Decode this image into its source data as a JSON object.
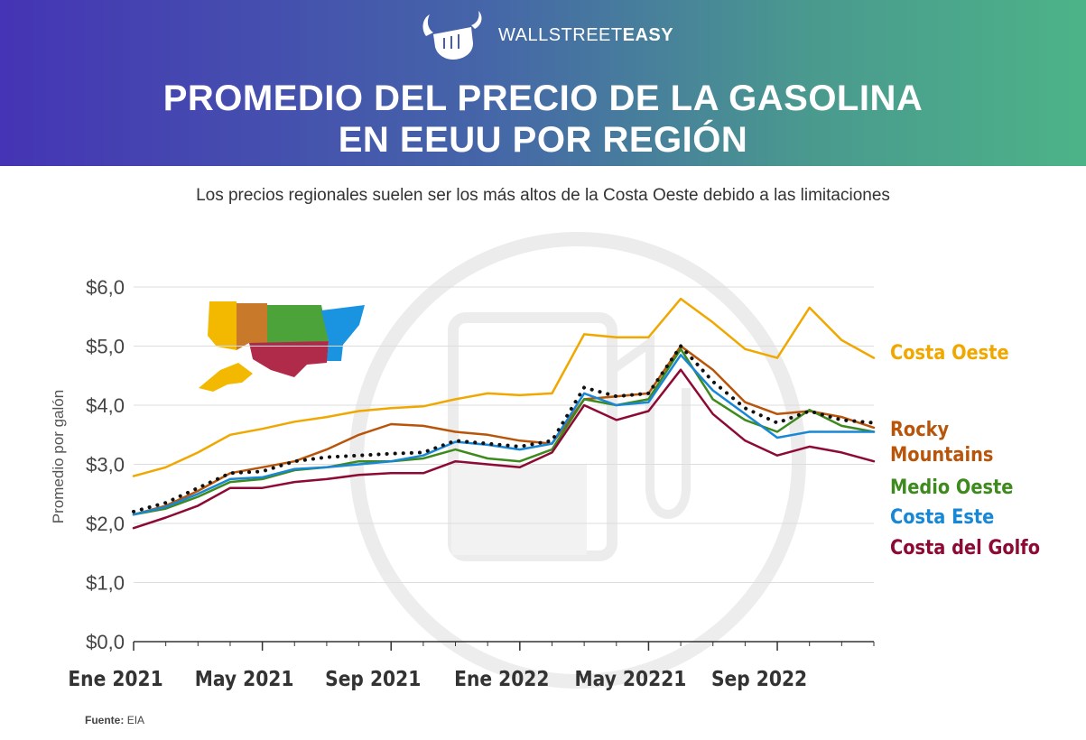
{
  "header": {
    "brand_regular": "WALLSTREET",
    "brand_bold": "EASY",
    "title_line1": "PROMEDIO DEL PRECIO DE LA GASOLINA",
    "title_line2": "EN EEUU POR REGIÓN"
  },
  "subtitle": "Los precios regionales suelen ser los más altos de la Costa Oeste debido a las limitaciones",
  "source": {
    "label": "Fuente:",
    "value": "EIA"
  },
  "colors": {
    "costa_oeste": "#f0a800",
    "rocky": "#b8550a",
    "medio_oeste": "#3f8a1e",
    "costa_este": "#1787d6",
    "costa_golfo": "#8c0a33",
    "promedio": "#111111"
  },
  "chart_data": {
    "type": "line",
    "ylabel": "Promedio por galón",
    "ylim": [
      0,
      6
    ],
    "yticks": [
      0,
      1,
      2,
      3,
      4,
      5,
      6
    ],
    "ytick_labels": [
      "$0,0",
      "$1,0",
      "$2,0",
      "$3,0",
      "$4,0",
      "$5,0",
      "$6,0"
    ],
    "xticks": [
      "Ene 2021",
      "May 2021",
      "Sep 2021",
      "Ene 2022",
      "May 20221",
      "Sep 2022"
    ],
    "grid": true,
    "legend_position": "right",
    "x": [
      "2021-01",
      "2021-02",
      "2021-03",
      "2021-04",
      "2021-05",
      "2021-06",
      "2021-07",
      "2021-08",
      "2021-09",
      "2021-10",
      "2021-11",
      "2021-12",
      "2022-01",
      "2022-02",
      "2022-03",
      "2022-04",
      "2022-05",
      "2022-06",
      "2022-07",
      "2022-08",
      "2022-09",
      "2022-10",
      "2022-11",
      "2022-12"
    ],
    "series": [
      {
        "name": "Costa Oeste",
        "color_key": "costa_oeste",
        "values": [
          2.8,
          2.95,
          3.2,
          3.5,
          3.6,
          3.72,
          3.8,
          3.9,
          3.95,
          3.98,
          4.1,
          4.2,
          4.17,
          4.2,
          5.2,
          5.15,
          5.15,
          5.8,
          5.4,
          4.95,
          4.8,
          5.65,
          5.1,
          4.8
        ]
      },
      {
        "name": "Rocky Mountains",
        "color_key": "rocky",
        "values": [
          2.15,
          2.3,
          2.55,
          2.85,
          2.95,
          3.05,
          3.25,
          3.5,
          3.68,
          3.65,
          3.55,
          3.5,
          3.4,
          3.35,
          4.1,
          4.15,
          4.2,
          5.0,
          4.6,
          4.05,
          3.85,
          3.9,
          3.8,
          3.62
        ]
      },
      {
        "name": "Medio Oeste",
        "color_key": "medio_oeste",
        "values": [
          2.15,
          2.25,
          2.45,
          2.7,
          2.75,
          2.9,
          2.95,
          3.05,
          3.05,
          3.1,
          3.25,
          3.1,
          3.05,
          3.25,
          4.1,
          4.0,
          4.1,
          4.95,
          4.1,
          3.75,
          3.55,
          3.92,
          3.65,
          3.55
        ]
      },
      {
        "name": "Costa Este",
        "color_key": "costa_este",
        "values": [
          2.15,
          2.28,
          2.5,
          2.75,
          2.78,
          2.92,
          2.95,
          3.0,
          3.05,
          3.15,
          3.38,
          3.33,
          3.25,
          3.35,
          4.2,
          4.0,
          4.05,
          4.85,
          4.25,
          3.85,
          3.45,
          3.55,
          3.55,
          3.55
        ]
      },
      {
        "name": "Costa del Golfo",
        "color_key": "costa_golfo",
        "values": [
          1.92,
          2.1,
          2.3,
          2.6,
          2.6,
          2.7,
          2.75,
          2.82,
          2.85,
          2.85,
          3.05,
          3.0,
          2.95,
          3.2,
          4.0,
          3.75,
          3.9,
          4.6,
          3.85,
          3.4,
          3.15,
          3.3,
          3.2,
          3.05
        ]
      },
      {
        "color_key": "promedio",
        "dotted": true,
        "values": [
          2.2,
          2.35,
          2.6,
          2.85,
          2.88,
          3.05,
          3.12,
          3.15,
          3.18,
          3.2,
          3.4,
          3.35,
          3.3,
          3.4,
          4.3,
          4.15,
          4.2,
          5.0,
          4.4,
          3.95,
          3.7,
          3.9,
          3.75,
          3.7
        ]
      }
    ]
  }
}
